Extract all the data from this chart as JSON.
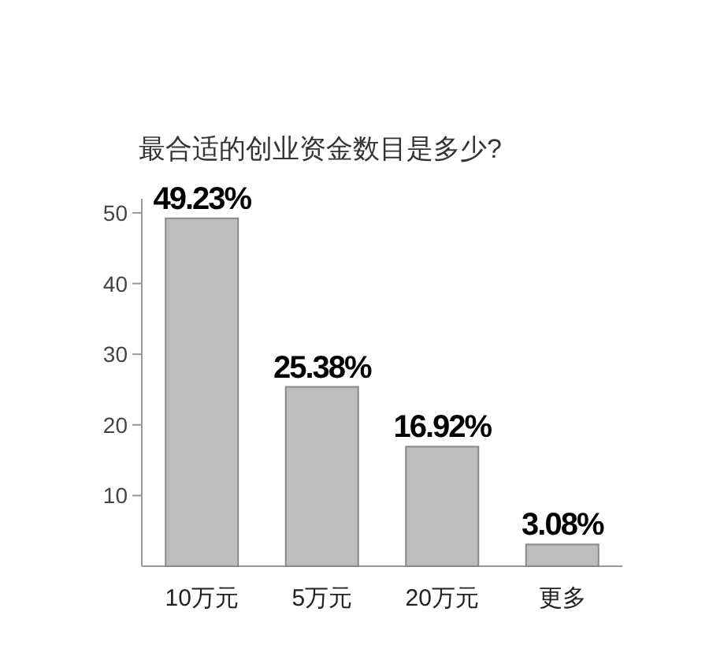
{
  "chart_data": {
    "type": "bar",
    "title": "最合适的创业资金数目是多少?",
    "categories": [
      "10万元",
      "5万元",
      "20万元",
      "更多"
    ],
    "values": [
      49.23,
      25.38,
      16.92,
      3.08
    ],
    "value_labels": [
      "49.23%",
      "25.38%",
      "16.92%",
      "3.08%"
    ],
    "color": "#bdbdbd",
    "ylim": [
      0,
      52
    ],
    "yticks": [
      10,
      20,
      30,
      40,
      50
    ]
  }
}
